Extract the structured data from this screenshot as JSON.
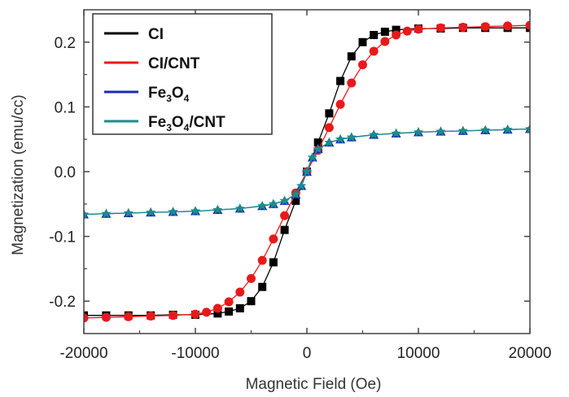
{
  "chart_data": {
    "type": "scatter",
    "xlabel": "Magnetic Field (Oe)",
    "ylabel": "Magnetization (emu/cc)",
    "xlim": [
      -20000,
      20000
    ],
    "ylim": [
      -0.25,
      0.25
    ],
    "xticks": [
      -20000,
      -10000,
      0,
      10000,
      20000
    ],
    "xtick_labels": [
      "-20000",
      "-10000",
      "0",
      "10000",
      "20000"
    ],
    "yticks": [
      -0.2,
      -0.1,
      0.0,
      0.1,
      0.2
    ],
    "ytick_labels": [
      "-0.2",
      "-0.1",
      "0.0",
      "0.1",
      "0.2"
    ],
    "grid": false,
    "legend_position": "top-left",
    "series": [
      {
        "name": "CI",
        "color": "#000000",
        "marker": "square",
        "x": [
          -20000,
          -18000,
          -16000,
          -14000,
          -12000,
          -10000,
          -8000,
          -7000,
          -6000,
          -5000,
          -4000,
          -3000,
          -2000,
          -1000,
          0,
          1000,
          2000,
          3000,
          4000,
          5000,
          6000,
          7000,
          8000,
          10000,
          12000,
          14000,
          16000,
          18000,
          20000
        ],
        "y": [
          -0.222,
          -0.222,
          -0.222,
          -0.222,
          -0.221,
          -0.221,
          -0.219,
          -0.216,
          -0.211,
          -0.2,
          -0.178,
          -0.14,
          -0.09,
          -0.045,
          0.0,
          0.045,
          0.09,
          0.14,
          0.178,
          0.2,
          0.211,
          0.216,
          0.219,
          0.221,
          0.221,
          0.222,
          0.222,
          0.222,
          0.222
        ]
      },
      {
        "name": "CI/CNT",
        "color": "#e8191a",
        "marker": "circle",
        "x": [
          -20000,
          -18000,
          -16000,
          -14000,
          -12000,
          -10000,
          -9000,
          -8000,
          -7000,
          -6000,
          -5000,
          -4000,
          -3000,
          -2000,
          -1000,
          0,
          1000,
          2000,
          3000,
          4000,
          5000,
          6000,
          7000,
          8000,
          9000,
          10000,
          12000,
          14000,
          16000,
          18000,
          20000
        ],
        "y": [
          -0.226,
          -0.225,
          -0.224,
          -0.223,
          -0.222,
          -0.22,
          -0.217,
          -0.211,
          -0.201,
          -0.186,
          -0.165,
          -0.137,
          -0.104,
          -0.068,
          -0.033,
          0.0,
          0.033,
          0.068,
          0.104,
          0.137,
          0.165,
          0.186,
          0.201,
          0.211,
          0.217,
          0.22,
          0.222,
          0.223,
          0.224,
          0.225,
          0.226
        ]
      },
      {
        "name": "Fe3O4",
        "color": "#1a2ab5",
        "marker": "triangle",
        "x": [
          -20000,
          -18000,
          -16000,
          -14000,
          -12000,
          -10000,
          -8000,
          -6000,
          -4000,
          -3000,
          -2000,
          -1000,
          -500,
          0,
          500,
          1000,
          2000,
          3000,
          4000,
          6000,
          8000,
          10000,
          12000,
          14000,
          16000,
          18000,
          20000
        ],
        "y": [
          -0.066,
          -0.065,
          -0.064,
          -0.063,
          -0.062,
          -0.061,
          -0.059,
          -0.057,
          -0.053,
          -0.05,
          -0.045,
          -0.035,
          -0.022,
          0.0,
          0.022,
          0.035,
          0.045,
          0.05,
          0.053,
          0.057,
          0.059,
          0.061,
          0.062,
          0.063,
          0.064,
          0.065,
          0.066
        ]
      },
      {
        "name": "Fe3O4/CNT",
        "color": "#1a8c8a",
        "marker": "star",
        "x": [
          -20000,
          -18000,
          -16000,
          -14000,
          -12000,
          -10000,
          -8000,
          -6000,
          -4000,
          -3000,
          -2000,
          -1000,
          -500,
          0,
          500,
          1000,
          2000,
          3000,
          4000,
          6000,
          8000,
          10000,
          12000,
          14000,
          16000,
          18000,
          20000
        ],
        "y": [
          -0.066,
          -0.065,
          -0.064,
          -0.063,
          -0.062,
          -0.061,
          -0.059,
          -0.057,
          -0.053,
          -0.05,
          -0.045,
          -0.035,
          -0.022,
          0.0,
          0.022,
          0.035,
          0.045,
          0.05,
          0.053,
          0.057,
          0.059,
          0.061,
          0.062,
          0.063,
          0.064,
          0.065,
          0.066
        ]
      }
    ],
    "legend": [
      {
        "main": "CI",
        "parts": [
          {
            "t": "CI",
            "sub": false
          }
        ]
      },
      {
        "main": "CI/CNT",
        "parts": [
          {
            "t": "CI/CNT",
            "sub": false
          }
        ]
      },
      {
        "main": "Fe3O4",
        "parts": [
          {
            "t": "Fe",
            "sub": false
          },
          {
            "t": "3",
            "sub": true
          },
          {
            "t": "O",
            "sub": false
          },
          {
            "t": "4",
            "sub": true
          }
        ]
      },
      {
        "main": "Fe3O4/CNT",
        "parts": [
          {
            "t": "Fe",
            "sub": false
          },
          {
            "t": "3",
            "sub": true
          },
          {
            "t": "O",
            "sub": false
          },
          {
            "t": "4",
            "sub": true
          },
          {
            "t": "/CNT",
            "sub": false
          }
        ]
      }
    ]
  }
}
